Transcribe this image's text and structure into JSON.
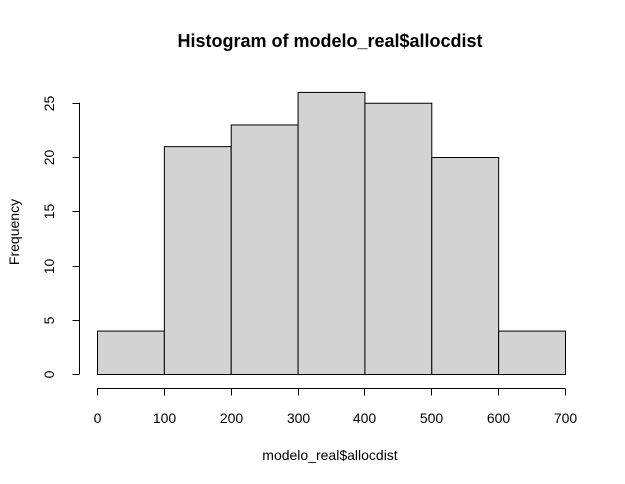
{
  "chart_data": {
    "type": "bar",
    "title": "Histogram of modelo_real$allocdist",
    "xlabel": "modelo_real$allocdist",
    "ylabel": "Frequency",
    "bins": [
      {
        "from": 0,
        "to": 100,
        "count": 4
      },
      {
        "from": 100,
        "to": 200,
        "count": 21
      },
      {
        "from": 200,
        "to": 300,
        "count": 23
      },
      {
        "from": 300,
        "to": 400,
        "count": 26
      },
      {
        "from": 400,
        "to": 500,
        "count": 25
      },
      {
        "from": 500,
        "to": 600,
        "count": 20
      },
      {
        "from": 600,
        "to": 700,
        "count": 4
      }
    ],
    "xticks": [
      0,
      100,
      200,
      300,
      400,
      500,
      600,
      700
    ],
    "yticks": [
      0,
      5,
      10,
      15,
      20,
      25
    ],
    "xlim": [
      0,
      700
    ],
    "ylim": [
      0,
      26
    ],
    "grid": false,
    "bar_color": "#d3d3d3",
    "edge_color": "#000000"
  }
}
